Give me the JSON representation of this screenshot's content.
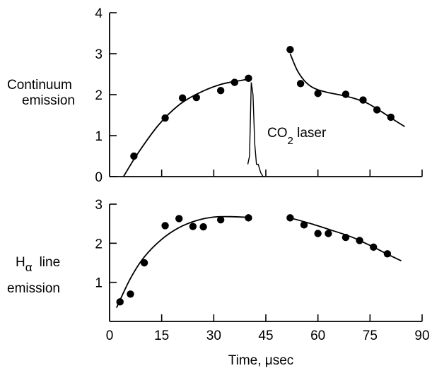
{
  "chart_data": [
    {
      "type": "scatter",
      "panel": "top",
      "ylabel_lines": [
        "Continuum",
        "emission"
      ],
      "xlim": [
        0,
        90
      ],
      "ylim": [
        0,
        4
      ],
      "yticks": [
        0,
        1,
        2,
        3,
        4
      ],
      "annotation": {
        "text": "CO",
        "subscript": "2",
        "suffix": " laser"
      },
      "series": [
        {
          "values_x": [
            7,
            16,
            21,
            25,
            32,
            36,
            40
          ],
          "values_y": [
            0.5,
            1.43,
            1.92,
            1.93,
            2.1,
            2.3,
            2.4
          ]
        },
        {
          "values_x": [
            52,
            55,
            60,
            68,
            73,
            77,
            81
          ],
          "values_y": [
            3.1,
            2.27,
            2.03,
            2.01,
            1.87,
            1.63,
            1.45
          ]
        }
      ],
      "fit_curves": [
        {
          "x": [
            4,
            8,
            14,
            20,
            26,
            32,
            38,
            40.5
          ],
          "y": [
            0,
            0.55,
            1.25,
            1.75,
            2.05,
            2.25,
            2.35,
            2.38
          ]
        },
        {
          "x": [
            52,
            54,
            56,
            58,
            60,
            63,
            66,
            70,
            74,
            78,
            82,
            85
          ],
          "y": [
            3.0,
            2.6,
            2.35,
            2.2,
            2.12,
            2.05,
            2.0,
            1.92,
            1.8,
            1.6,
            1.38,
            1.22
          ]
        }
      ],
      "laser_pulse": {
        "x": [
          39.8,
          40.3,
          40.8,
          41.3,
          41.8,
          42.3,
          42.8,
          43.5,
          44.2
        ],
        "y": [
          0.3,
          0.5,
          2.3,
          2.0,
          0.8,
          0.3,
          0.3,
          0.1,
          0.0
        ]
      }
    },
    {
      "type": "scatter",
      "panel": "bottom",
      "ylabel_lines": [
        "H",
        "line",
        "emission"
      ],
      "ylabel_subscript": "α",
      "xlabel": "Time, μsec",
      "xlim": [
        0,
        90
      ],
      "ylim": [
        0,
        3
      ],
      "yticks": [
        1,
        2,
        3
      ],
      "xticks": [
        "0",
        "15",
        "30",
        "45",
        "60",
        "75",
        "90"
      ],
      "series": [
        {
          "values_x": [
            3,
            6,
            10,
            16,
            20,
            24,
            27,
            32,
            40
          ],
          "values_y": [
            0.5,
            0.7,
            1.5,
            2.45,
            2.63,
            2.43,
            2.42,
            2.6,
            2.65
          ]
        },
        {
          "values_x": [
            52,
            56,
            60,
            63,
            68,
            72,
            76,
            80
          ],
          "values_y": [
            2.65,
            2.47,
            2.25,
            2.25,
            2.15,
            2.07,
            1.9,
            1.73
          ]
        }
      ],
      "fit_curves": [
        {
          "x": [
            2,
            6,
            10,
            15,
            20,
            25,
            30,
            35,
            40
          ],
          "y": [
            0.35,
            1.1,
            1.65,
            2.1,
            2.4,
            2.58,
            2.67,
            2.68,
            2.66
          ]
        },
        {
          "x": [
            52,
            58,
            64,
            70,
            76,
            80,
            84
          ],
          "y": [
            2.65,
            2.5,
            2.33,
            2.15,
            1.9,
            1.72,
            1.55
          ]
        }
      ]
    }
  ]
}
